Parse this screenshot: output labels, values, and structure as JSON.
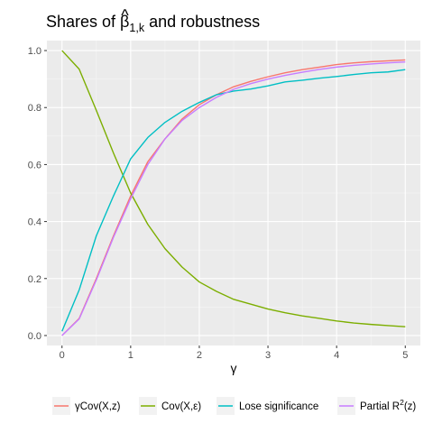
{
  "chart_data": {
    "type": "line",
    "title": "Shares of β̂₁,k and robustness",
    "title_parts": {
      "prefix": "Shares of ",
      "symbol": "β",
      "hat": "^",
      "subscript": "1,k",
      "suffix": " and robustness"
    },
    "xlabel": "γ",
    "ylabel": "",
    "xlim": [
      -0.22,
      5.22
    ],
    "ylim": [
      -0.035,
      1.035
    ],
    "x_ticks": [
      "0",
      "1",
      "2",
      "3",
      "4",
      "5"
    ],
    "y_ticks": [
      "0.0",
      "0.2",
      "0.4",
      "0.6",
      "0.8",
      "1.0"
    ],
    "grid": true,
    "legend_position": "bottom",
    "x": [
      0,
      0.25,
      0.5,
      0.75,
      1,
      1.25,
      1.5,
      1.75,
      2,
      2.25,
      2.5,
      2.75,
      3,
      3.25,
      3.5,
      3.75,
      4,
      4.25,
      4.5,
      4.75,
      5
    ],
    "series": [
      {
        "name": "γCov(X,z)",
        "color": "#F8766D",
        "values": [
          0.0,
          0.06,
          0.2,
          0.35,
          0.49,
          0.61,
          0.69,
          0.76,
          0.81,
          0.845,
          0.873,
          0.892,
          0.908,
          0.922,
          0.933,
          0.942,
          0.951,
          0.957,
          0.961,
          0.964,
          0.967
        ]
      },
      {
        "name": "Cov(X,ε)",
        "color": "#7CAE00",
        "values": [
          1.0,
          0.935,
          0.79,
          0.64,
          0.5,
          0.39,
          0.305,
          0.24,
          0.188,
          0.155,
          0.127,
          0.11,
          0.093,
          0.08,
          0.069,
          0.06,
          0.051,
          0.044,
          0.039,
          0.035,
          0.031
        ]
      },
      {
        "name": "Lose significance",
        "color": "#00BFC4",
        "values": [
          0.015,
          0.16,
          0.35,
          0.49,
          0.62,
          0.695,
          0.748,
          0.787,
          0.818,
          0.845,
          0.858,
          0.865,
          0.876,
          0.89,
          0.896,
          0.903,
          0.909,
          0.916,
          0.922,
          0.925,
          0.933
        ]
      },
      {
        "name": "Partial R²(z)",
        "name_parts": {
          "base": "Partial R",
          "sup": "2",
          "suffix": "(z)"
        },
        "color": "#C77CFF",
        "values": [
          0.0,
          0.058,
          0.195,
          0.345,
          0.48,
          0.6,
          0.69,
          0.755,
          0.8,
          0.836,
          0.864,
          0.884,
          0.9,
          0.913,
          0.924,
          0.934,
          0.942,
          0.948,
          0.953,
          0.957,
          0.96
        ]
      }
    ]
  },
  "colors": {
    "panel_background": "#EBEBEB",
    "grid_major": "#FFFFFF",
    "grid_minor": "#F5F5F5",
    "legend_key_background": "#F2F2F2"
  }
}
